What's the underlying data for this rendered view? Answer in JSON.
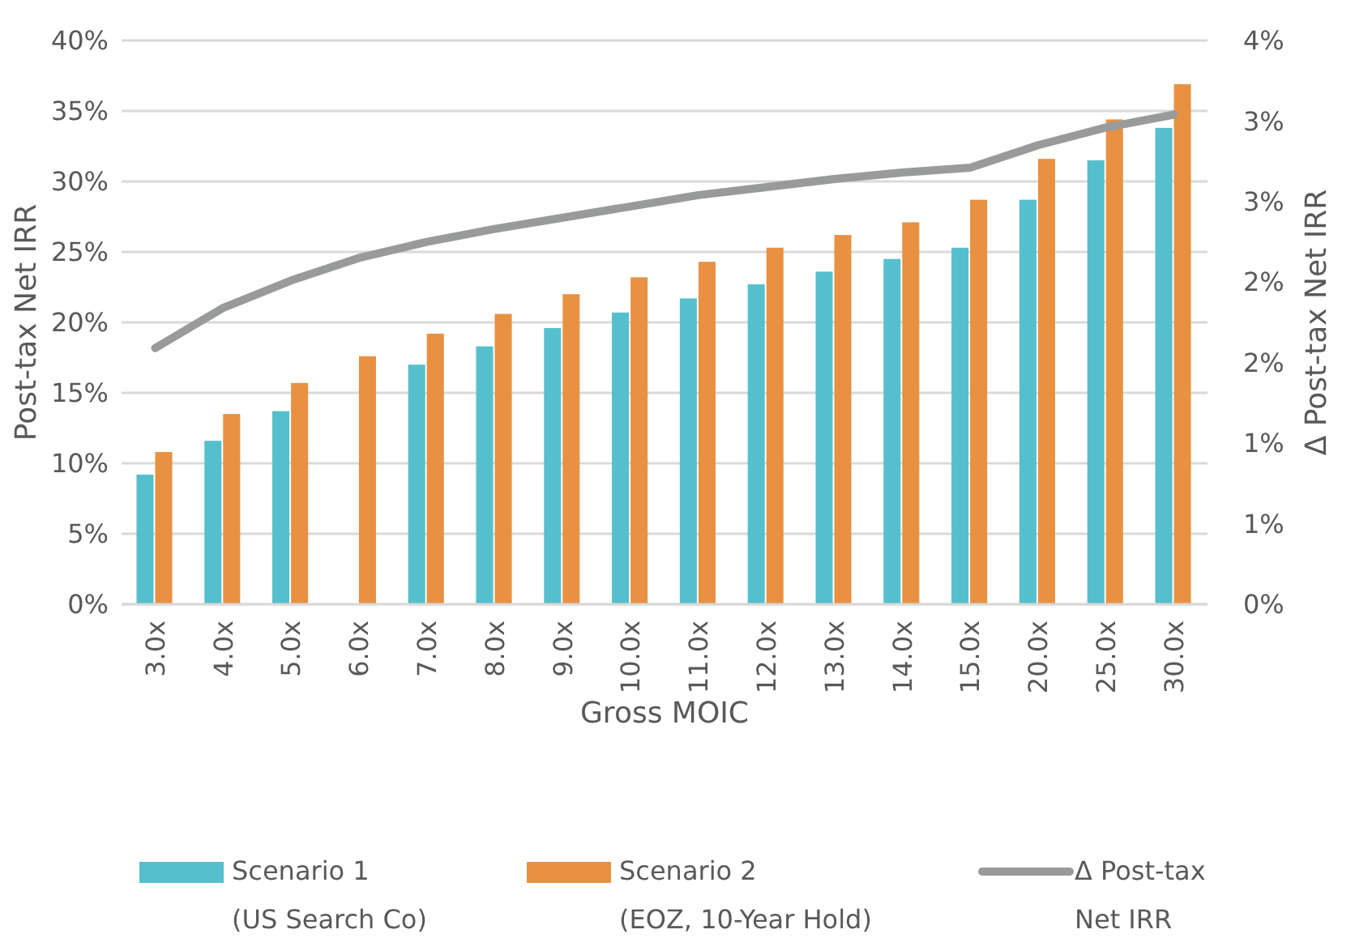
{
  "chart_data": {
    "type": "bar",
    "xlabel": "Gross MOIC",
    "ylabel": "Post-tax Net IRR",
    "y2label": "Δ Post-tax Net IRR",
    "categories": [
      "3.0x",
      "4.0x",
      "5.0x",
      "6.0x",
      "7.0x",
      "8.0x",
      "9.0x",
      "10.0x",
      "11.0x",
      "12.0x",
      "13.0x",
      "14.0x",
      "15.0x",
      "20.0x",
      "25.0x",
      "30.0x"
    ],
    "series": [
      {
        "name": "Scenario 1\n(US Search Co)",
        "color": "#56bfcd",
        "values": [
          9.2,
          11.6,
          13.7,
          null,
          17.0,
          18.3,
          19.6,
          20.7,
          21.7,
          22.7,
          23.6,
          24.5,
          25.3,
          28.7,
          31.5,
          33.8
        ]
      },
      {
        "name": "Scenario 2\n(EOZ, 10-Year Hold)",
        "color": "#e89143",
        "values": [
          10.8,
          13.5,
          15.7,
          17.6,
          19.2,
          20.6,
          22.0,
          23.2,
          24.3,
          25.3,
          26.2,
          27.1,
          28.7,
          31.6,
          34.4,
          36.9
        ]
      },
      {
        "name": "Δ Post-tax\nNet IRR",
        "type": "line",
        "axis": "y2",
        "color": "#999b9b",
        "marker": "none",
        "values": [
          1.59,
          1.84,
          2.01,
          2.15,
          2.25,
          2.33,
          2.4,
          2.47,
          2.54,
          2.59,
          2.64,
          2.68,
          2.71,
          2.85,
          2.96,
          3.04
        ]
      }
    ],
    "ylim": [
      0,
      40
    ],
    "yticks": [
      {
        "value": 0,
        "label": "0%"
      },
      {
        "value": 5,
        "label": "5%"
      },
      {
        "value": 10,
        "label": "10%"
      },
      {
        "value": 15,
        "label": "15%"
      },
      {
        "value": 20,
        "label": "20%"
      },
      {
        "value": 25,
        "label": "25%"
      },
      {
        "value": 30,
        "label": "30%"
      },
      {
        "value": 35,
        "label": "35%"
      },
      {
        "value": 40,
        "label": "40%"
      }
    ],
    "y2lim": [
      0,
      3.5
    ],
    "y2ticks": [
      {
        "value": 0,
        "label": "0%"
      },
      {
        "value": 0.5,
        "label": "1%"
      },
      {
        "value": 1,
        "label": "1%"
      },
      {
        "value": 1.5,
        "label": "2%"
      },
      {
        "value": 2,
        "label": "2%"
      },
      {
        "value": 2.5,
        "label": "3%"
      },
      {
        "value": 3,
        "label": "3%"
      },
      {
        "value": 3.5,
        "label": "4%"
      }
    ],
    "grid": "y",
    "legend": "bottom"
  }
}
